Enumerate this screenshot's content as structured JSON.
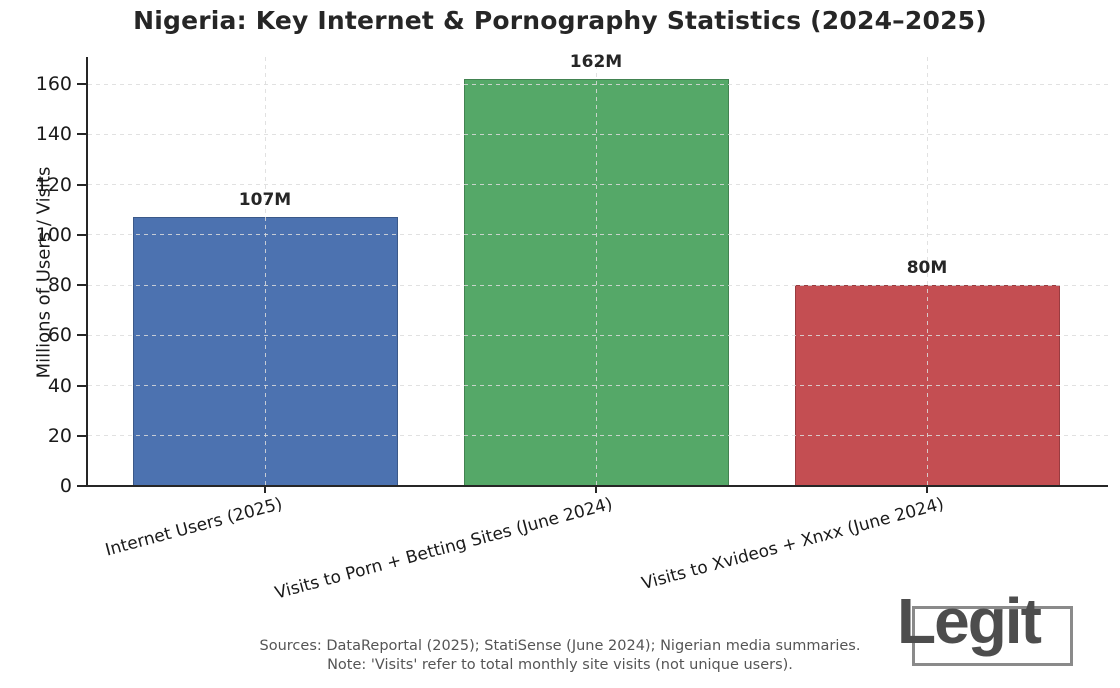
{
  "title": "Nigeria: Key Internet & Pornography Statistics (2024–2025)",
  "chart_data": {
    "type": "bar",
    "title": "Nigeria: Key Internet & Pornography Statistics (2024–2025)",
    "categories": [
      "Internet Users (2025)",
      "Visits to Porn + Betting Sites (June 2024)",
      "Visits to Xvideos + Xnxx (June 2024)"
    ],
    "values": [
      107,
      162,
      80
    ],
    "value_labels": [
      "107M",
      "162M",
      "80M"
    ],
    "bar_colors": [
      "#4C72B0",
      "#55A868",
      "#C44E52"
    ],
    "xlabel": "",
    "ylabel": "Millions of Users / Visits",
    "yticks": [
      0,
      20,
      40,
      60,
      80,
      100,
      120,
      140,
      160
    ],
    "ylim": [
      0,
      170
    ],
    "grid": {
      "style": "dashed",
      "axes": "both",
      "drawn_over_bars": true
    },
    "legend": "none"
  },
  "footer": {
    "sources_line": "Sources: DataReportal (2025); StatiSense (June 2024); Nigerian media summaries.",
    "note_line": "Note: 'Visits' refer to total monthly site visits (not unique users)."
  },
  "logo": {
    "text": "Legit"
  },
  "colors": {
    "background": "#ffffff",
    "text_primary": "#262626",
    "text_secondary": "#555555",
    "axis": "#262626",
    "gridline": "#dcdcdc",
    "logo_text": "#4d4d4d",
    "logo_frame": "#8a8a8a"
  }
}
